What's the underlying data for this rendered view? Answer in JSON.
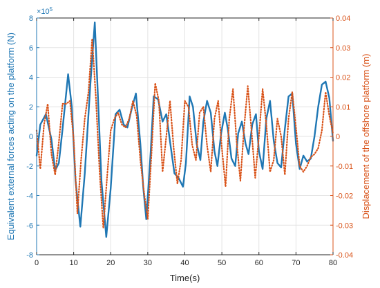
{
  "chart_data": {
    "type": "line",
    "title": "",
    "xlabel": "Time(s)",
    "ylabel_left": "Equivalent external forces acting on the platform (N)",
    "ylabel_right": "Displacement of the offshore platform (m)",
    "left_exponent_label": "×10",
    "left_exponent_power": "5",
    "xlim": [
      0,
      80
    ],
    "ylim_left": [
      -8,
      8
    ],
    "ylim_right": [
      -0.04,
      0.04
    ],
    "x_ticks": [
      0,
      10,
      20,
      30,
      40,
      50,
      60,
      70,
      80
    ],
    "y_left_ticks": [
      -8,
      -6,
      -4,
      -2,
      0,
      2,
      4,
      6,
      8
    ],
    "y_right_ticks": [
      -0.04,
      -0.03,
      -0.02,
      -0.01,
      0,
      0.01,
      0.02,
      0.03,
      0.04
    ],
    "x_tick_labels": [
      "0",
      "10",
      "20",
      "30",
      "40",
      "50",
      "60",
      "70",
      "80"
    ],
    "y_left_tick_labels": [
      "-8",
      "-6",
      "-4",
      "-2",
      "0",
      "2",
      "4",
      "6",
      "8"
    ],
    "y_right_tick_labels": [
      "-0.04",
      "-0.03",
      "-0.02",
      "-0.01",
      "0",
      "0.01",
      "0.02",
      "0.03",
      "0.04"
    ],
    "grid": true,
    "legend": "none",
    "series": [
      {
        "axis": "left",
        "color": "#1f77b4",
        "line_style": "solid",
        "unit_scale": 100000,
        "x": [
          0,
          1,
          2.5,
          4,
          5,
          6,
          7,
          8.5,
          9.5,
          10.5,
          11.8,
          13,
          14.5,
          15.7,
          16.5,
          17.5,
          18.8,
          20,
          21.3,
          22.4,
          23.5,
          24.5,
          25.7,
          26.8,
          28,
          28.8,
          29.6,
          30.8,
          31.6,
          32.8,
          34,
          35,
          36.2,
          37.2,
          38.3,
          39.5,
          40.3,
          41.3,
          42.2,
          43.2,
          44.2,
          45,
          46,
          47,
          48,
          48.8,
          49.8,
          50.8,
          51.6,
          52.6,
          53.6,
          54.4,
          55.4,
          56.4,
          57.2,
          58.2,
          59.2,
          60,
          61,
          62,
          63,
          64,
          65,
          66,
          67,
          68,
          69,
          70,
          71,
          72,
          73,
          74,
          75,
          76,
          77,
          78,
          79,
          80
        ],
        "y": [
          -1.3,
          0.8,
          1.5,
          -0.2,
          -2.3,
          -1.8,
          0.5,
          4.2,
          2.0,
          -3.0,
          -6.1,
          -2.5,
          3.5,
          7.7,
          3.0,
          -3.0,
          -6.8,
          -3.5,
          1.5,
          1.8,
          0.8,
          0.6,
          1.9,
          2.9,
          -0.5,
          -3.5,
          -5.6,
          -1.0,
          2.7,
          2.5,
          1.0,
          1.5,
          -0.7,
          -2.5,
          -2.8,
          -3.4,
          -1.8,
          2.7,
          2.0,
          -0.5,
          -1.6,
          1.0,
          2.4,
          1.6,
          -1.0,
          -2.0,
          0.2,
          1.6,
          0.5,
          -1.5,
          -2.0,
          0.2,
          1.0,
          -0.5,
          -1.2,
          0.8,
          1.5,
          -1.0,
          -2.2,
          1.2,
          2.4,
          -0.3,
          -1.8,
          -2.1,
          0.5,
          2.7,
          2.9,
          -0.5,
          -2.2,
          -1.3,
          -1.7,
          -1.5,
          0.0,
          2.0,
          3.5,
          3.7,
          2.6,
          -0.3
        ]
      },
      {
        "axis": "right",
        "color": "#d95319",
        "line_style": "dotted",
        "unit_scale": 1,
        "x": [
          0,
          1,
          2,
          3,
          4,
          5,
          6,
          7,
          8,
          9,
          10,
          11,
          12,
          13,
          14,
          15,
          16,
          17,
          18,
          19,
          20,
          21,
          22,
          23,
          24,
          25,
          26,
          27,
          28,
          29,
          30,
          31,
          32,
          33,
          34,
          35,
          36,
          37,
          38,
          39,
          40,
          41,
          42,
          43,
          44,
          45,
          46,
          47,
          48,
          49,
          50,
          51,
          52,
          53,
          54,
          55,
          56,
          57,
          58,
          59,
          60,
          61,
          62,
          63,
          64,
          65,
          66,
          67,
          68,
          69,
          70,
          71,
          72,
          73,
          74,
          75,
          76,
          77,
          78,
          79,
          80
        ],
        "y": [
          0.002,
          -0.011,
          0.004,
          0.011,
          -0.006,
          -0.013,
          -0.002,
          0.011,
          0.011,
          0.012,
          -0.001,
          -0.026,
          -0.008,
          0.006,
          0.015,
          0.033,
          0.013,
          -0.012,
          -0.031,
          -0.014,
          0.002,
          0.006,
          0.008,
          0.004,
          0.003,
          0.006,
          0.012,
          0.007,
          -0.008,
          -0.019,
          -0.028,
          -0.006,
          0.018,
          0.012,
          -0.012,
          0.0,
          0.012,
          -0.004,
          -0.016,
          -0.008,
          0.012,
          0.01,
          -0.003,
          -0.008,
          0.008,
          0.01,
          -0.003,
          -0.012,
          0.006,
          0.012,
          -0.004,
          -0.017,
          0.006,
          0.016,
          -0.002,
          -0.015,
          0.003,
          0.017,
          0.002,
          -0.014,
          0.0,
          0.016,
          0.004,
          -0.012,
          -0.008,
          0.006,
          0.0,
          -0.013,
          0.006,
          0.015,
          0.003,
          -0.01,
          -0.012,
          -0.01,
          -0.007,
          -0.006,
          -0.004,
          0.002,
          0.015,
          0.007,
          0.001
        ]
      }
    ]
  }
}
